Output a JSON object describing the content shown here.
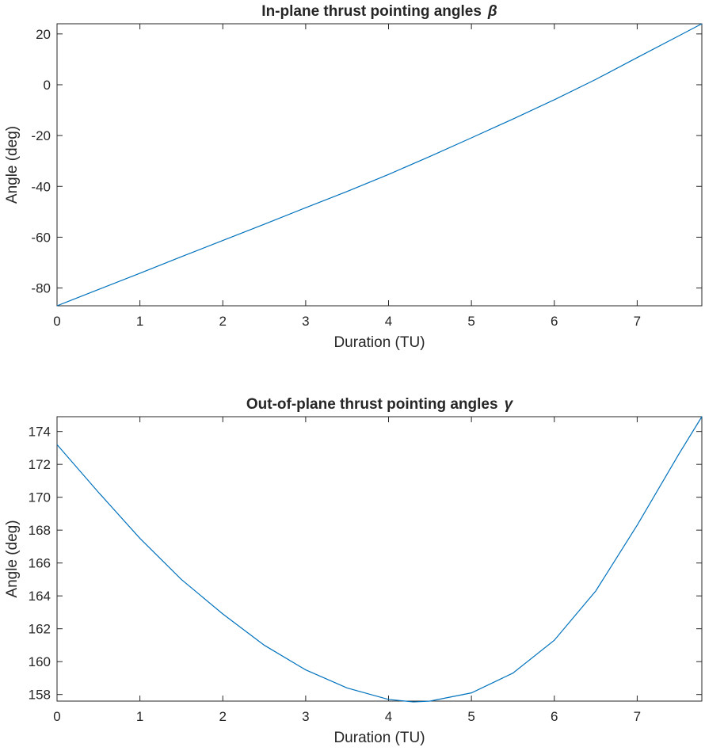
{
  "chart_data": [
    {
      "type": "line",
      "title": "In-plane thrust pointing angles",
      "title_symbol": "β",
      "xlabel": "Duration (TU)",
      "ylabel": "Angle (deg)",
      "xlim": [
        0,
        7.78
      ],
      "ylim": [
        -87,
        24
      ],
      "xticks": [
        0,
        1,
        2,
        3,
        4,
        5,
        6,
        7
      ],
      "yticks": [
        -80,
        -60,
        -40,
        -20,
        0,
        20
      ],
      "grid": false,
      "line_color": "#0072BD",
      "series": [
        {
          "x": [
            0,
            0.5,
            1,
            1.5,
            2,
            2.5,
            3,
            3.5,
            4,
            4.5,
            5,
            5.5,
            6,
            6.5,
            7,
            7.5,
            7.78
          ],
          "y": [
            -87,
            -80.6,
            -74.2,
            -67.7,
            -61.3,
            -54.9,
            -48.4,
            -42.0,
            -35.3,
            -28.2,
            -20.9,
            -13.5,
            -5.9,
            2.1,
            10.7,
            19.2,
            24
          ]
        }
      ]
    },
    {
      "type": "line",
      "title": "Out-of-plane thrust pointing angles",
      "title_symbol": "γ",
      "xlabel": "Duration (TU)",
      "ylabel": "Angle (deg)",
      "xlim": [
        0,
        7.78
      ],
      "ylim": [
        157.6,
        174.9
      ],
      "xticks": [
        0,
        1,
        2,
        3,
        4,
        5,
        6,
        7
      ],
      "yticks": [
        158,
        160,
        162,
        164,
        166,
        168,
        170,
        172,
        174
      ],
      "grid": false,
      "line_color": "#0072BD",
      "series": [
        {
          "x": [
            0,
            0.5,
            1,
            1.5,
            2,
            2.5,
            3,
            3.5,
            4,
            4.3,
            4.5,
            5,
            5.5,
            6,
            6.5,
            7,
            7.5,
            7.78
          ],
          "y": [
            173.2,
            170.3,
            167.5,
            165.0,
            162.9,
            161.0,
            159.5,
            158.4,
            157.7,
            157.55,
            157.6,
            158.1,
            159.3,
            161.3,
            164.3,
            168.3,
            172.6,
            174.9
          ]
        }
      ]
    }
  ]
}
